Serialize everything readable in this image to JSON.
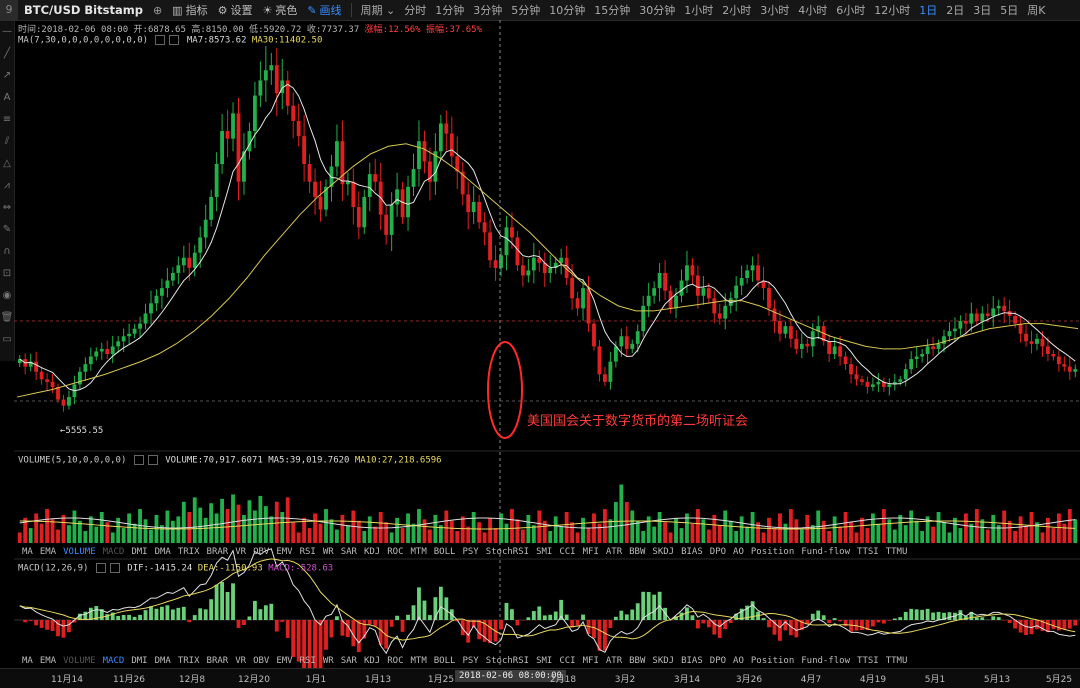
{
  "toolbar": {
    "logo": "9",
    "symbol": "BTC/USD Bitstamp",
    "buttons": [
      {
        "name": "indicator-button",
        "icon": "chart-icon",
        "glyph": "▥",
        "label": "指标",
        "active": false
      },
      {
        "name": "settings-button",
        "icon": "gear-icon",
        "glyph": "⚙",
        "label": "设置",
        "active": false
      },
      {
        "name": "theme-button",
        "icon": "sun-icon",
        "glyph": "☀",
        "label": "亮色",
        "active": false
      },
      {
        "name": "draw-button",
        "icon": "pencil-icon",
        "glyph": "✎",
        "label": "画线",
        "active": true
      }
    ],
    "period_label": "周期",
    "periods": [
      "分时",
      "1分钟",
      "3分钟",
      "5分钟",
      "10分钟",
      "15分钟",
      "30分钟",
      "1小时",
      "2小时",
      "3小时",
      "4小时",
      "6小时",
      "12小时",
      "1日",
      "2日",
      "3日",
      "5日",
      "周K"
    ],
    "active_period": "1日"
  },
  "info": {
    "time": "时间:2018-02-06 08:00",
    "open": "开:6878.65",
    "high": "高:8150.00",
    "low": "低:5920.72",
    "close": "收:7737.37",
    "change": "涨幅:12.56%",
    "amplitude": "振幅:37.65%"
  },
  "ma_legend": {
    "name": "MA(7,30,0,0,0,0,0,0,0,0)",
    "ma7": "MA7:8573.62",
    "ma30": "MA30:11402.50"
  },
  "price_chart": {
    "min_label": "←5555.55",
    "annotation": "美国国会关于数字货币的第二场听证会"
  },
  "volume_legend": {
    "name": "VOLUME(5,10,0,0,0,0)",
    "volume": "VOLUME:70,917.6071",
    "ma5": "MA5:39,019.7620",
    "ma10": "MA10:27,218.6596"
  },
  "macd_legend": {
    "name": "MACD(12,26,9)",
    "dif": "DIF:-1415.24",
    "dea": "DEA:-1150.93",
    "macd": "MACD:-528.63"
  },
  "indicator_tabs": [
    "MA",
    "EMA",
    "VOLUME",
    "MACD",
    "DMI",
    "DMA",
    "TRIX",
    "BRAR",
    "VR",
    "OBV",
    "EMV",
    "RSI",
    "WR",
    "SAR",
    "KDJ",
    "ROC",
    "MTM",
    "BOLL",
    "PSY",
    "StochRSI",
    "SMI",
    "CCI",
    "MFI",
    "ATR",
    "BBW",
    "SKDJ",
    "BIAS",
    "DPO",
    "AO",
    "Position",
    "Fund-flow",
    "TTSI",
    "TTMU"
  ],
  "xaxis": {
    "labels": [
      "11月14",
      "11月26",
      "12月8",
      "12月20",
      "1月1",
      "1月13",
      "1月25",
      "2月18",
      "3月2",
      "3月14",
      "3月26",
      "4月7",
      "4月19",
      "5月1",
      "5月13",
      "5月25"
    ],
    "cursor_date": "2018-02-06 08:00:00"
  },
  "colors": {
    "up": "#22b04a",
    "down": "#e02020",
    "accent": "#3a8dff",
    "ma7": "#e6e6e6",
    "ma30": "#d8c850",
    "macd_pos": "#6ad17a",
    "macd_neg": "#e02020"
  },
  "chart_data": {
    "type": "candlestick",
    "price_series": {
      "close_points": [
        7800,
        7500,
        7700,
        7300,
        7000,
        6900,
        6700,
        6200,
        5960,
        6300,
        6800,
        7300,
        7600,
        7900,
        8100,
        8200,
        8000,
        8300,
        8500,
        8700,
        8800,
        9000,
        9200,
        9600,
        10000,
        10300,
        10600,
        10900,
        11200,
        11500,
        11800,
        11400,
        12000,
        12600,
        13300,
        14200,
        15500,
        16800,
        16500,
        17500,
        14800,
        16000,
        16800,
        18200,
        18800,
        19200,
        19400,
        18300,
        18800,
        17800,
        17200,
        16600,
        15500,
        14800,
        14200,
        13700,
        14600,
        15400,
        16400,
        14700,
        14800,
        13800,
        13000,
        14200,
        15100,
        14800,
        13500,
        12700,
        13900,
        14500,
        13400,
        14600,
        15300,
        16400,
        15600,
        14800,
        16000,
        17100,
        16700,
        15800,
        15200,
        14300,
        13600,
        14000,
        13200,
        12800,
        11700,
        11400,
        11900,
        13000,
        12600,
        11500,
        11100,
        11300,
        11800,
        11600,
        11200,
        11400,
        11600,
        11800,
        11000,
        10200,
        9800,
        10600,
        9200,
        8300,
        7200,
        6900,
        7700,
        8300,
        8700,
        8200,
        8400,
        8900,
        9900,
        10300,
        10600,
        11200,
        10500,
        9800,
        10300,
        10900,
        11500,
        11100,
        10300,
        10600,
        10200,
        9600,
        9400,
        9900,
        10200,
        10700,
        11000,
        11300,
        11500,
        10900,
        10600,
        9800,
        9300,
        8800,
        9100,
        8600,
        8200,
        8400,
        8300,
        8900,
        9100,
        8500,
        8000,
        8300,
        7900,
        7600,
        7200,
        7000,
        6900,
        6700,
        6800,
        6900,
        6700,
        6800,
        6900,
        7000,
        7400,
        7800,
        7900,
        8000,
        8300,
        8200,
        8400,
        8700,
        8900,
        9000,
        9300,
        9200,
        9600,
        9300,
        9600,
        9500,
        9800,
        9900,
        9700,
        9500,
        9200,
        8800,
        8500,
        8400,
        8600,
        8300,
        8000,
        7900,
        7600,
        7500,
        7300,
        7400
      ],
      "ma30_points": [
        6300,
        6450,
        6600,
        6800,
        7000,
        7200,
        7450,
        7700,
        8000,
        8400,
        8900,
        9500,
        10200,
        11000,
        11900,
        12700,
        13500,
        14200,
        14800,
        15400,
        15900,
        16200,
        16300,
        16100,
        15700,
        15200,
        14600,
        14000,
        13400,
        12800,
        12100,
        11400,
        10800,
        10300,
        9900,
        9700,
        9700,
        9800,
        9900,
        10000,
        10100,
        10100,
        9900,
        9600,
        9300,
        9000,
        8700,
        8500,
        8300,
        8200,
        8200,
        8300,
        8400,
        8600,
        8800,
        9000,
        9100,
        9200,
        9200,
        9100,
        9000
      ]
    },
    "min_price": 5555.55,
    "cursor_time": "2018-02-06 08:00"
  }
}
